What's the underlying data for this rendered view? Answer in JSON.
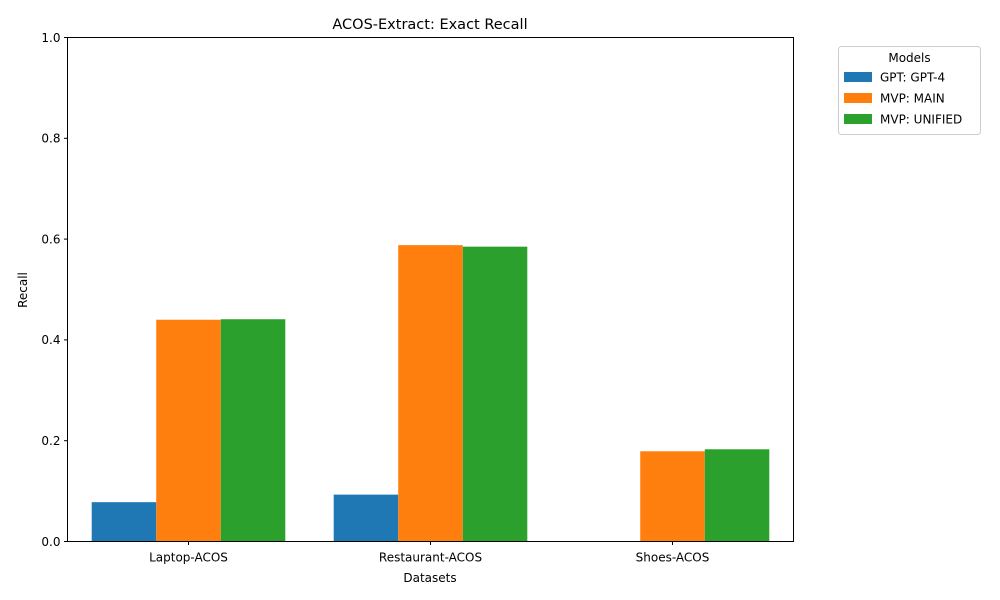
{
  "chart_data": {
    "type": "bar",
    "title": "ACOS-Extract: Exact Recall",
    "xlabel": "Datasets",
    "ylabel": "Recall",
    "categories": [
      "Laptop-ACOS",
      "Restaurant-ACOS",
      "Shoes-ACOS"
    ],
    "ylim": [
      0,
      1
    ],
    "yticks": [
      0.0,
      0.2,
      0.4,
      0.6,
      0.8,
      1.0
    ],
    "ytick_labels": [
      "0.0",
      "0.2",
      "0.4",
      "0.6",
      "0.8",
      "1.0"
    ],
    "grid": false,
    "legend": {
      "title": "Models",
      "placement": "outside-top-right"
    },
    "series": [
      {
        "name": "GPT: GPT-4",
        "color": "#1f77b4",
        "values": [
          0.078,
          0.093,
          0.0
        ]
      },
      {
        "name": "MVP: MAIN",
        "color": "#ff7f0e",
        "values": [
          0.44,
          0.588,
          0.179
        ]
      },
      {
        "name": "MVP: UNIFIED",
        "color": "#2ca02c",
        "values": [
          0.441,
          0.585,
          0.183
        ]
      }
    ]
  }
}
